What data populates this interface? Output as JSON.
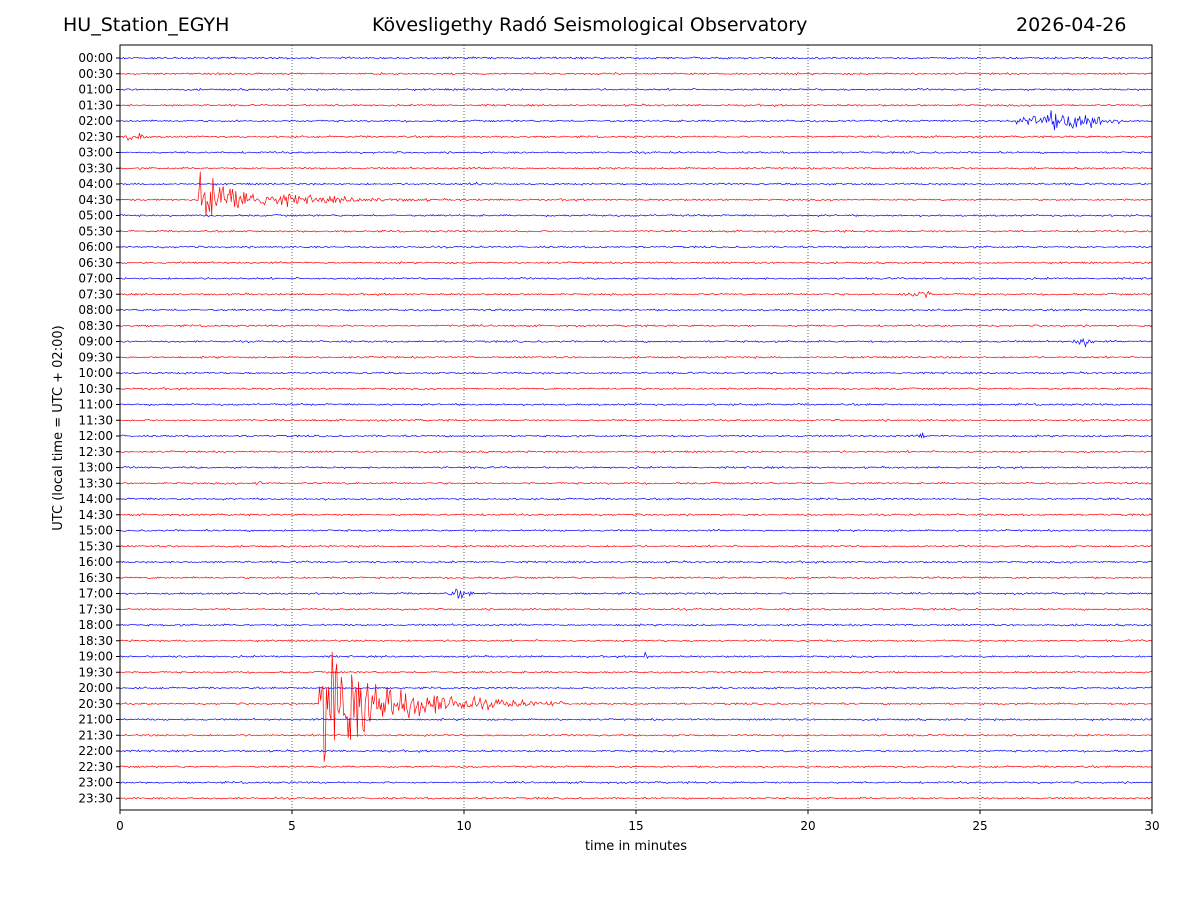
{
  "header": {
    "station": "HU_Station_EGYH",
    "observatory": "Kövesligethy Radó Seismological Observatory",
    "date": "2026-04-26"
  },
  "chart_data": {
    "type": "line",
    "title": "Kövesligethy Radó Seismological Observatory",
    "xlabel": "time in minutes",
    "ylabel": "UTC (local time = UTC + 02:00)",
    "xlim": [
      0,
      30
    ],
    "xticks": [
      0,
      5,
      10,
      15,
      20,
      25,
      30
    ],
    "grid": "vertical dotted lines at x ticks",
    "colors": {
      "even": "#0000ff",
      "odd": "#ff0000",
      "grid": "#000000"
    },
    "rows": [
      "00:00",
      "00:30",
      "01:00",
      "01:30",
      "02:00",
      "02:30",
      "03:00",
      "03:30",
      "04:00",
      "04:30",
      "05:00",
      "05:30",
      "06:00",
      "06:30",
      "07:00",
      "07:30",
      "08:00",
      "08:30",
      "09:00",
      "09:30",
      "10:00",
      "10:30",
      "11:00",
      "11:30",
      "12:00",
      "12:30",
      "13:00",
      "13:30",
      "14:00",
      "14:30",
      "15:00",
      "15:30",
      "16:00",
      "16:30",
      "17:00",
      "17:30",
      "18:00",
      "18:30",
      "19:00",
      "19:30",
      "20:00",
      "20:30",
      "21:00",
      "21:30",
      "22:00",
      "22:30",
      "23:00",
      "23:30"
    ],
    "events": [
      {
        "row": "02:00",
        "start": 25.5,
        "end": 29.5,
        "peak": 27.3,
        "amplitude": 0.7,
        "type": "emergent"
      },
      {
        "row": "04:30",
        "start": 2.3,
        "end": 9.0,
        "peak": 2.3,
        "amplitude": 1.8,
        "type": "impulsive"
      },
      {
        "row": "20:30",
        "start": 5.8,
        "end": 13.0,
        "peak": 5.8,
        "amplitude": 5.0,
        "type": "impulsive"
      },
      {
        "row": "12:00",
        "start": 23.2,
        "end": 23.4,
        "peak": 23.3,
        "amplitude": 0.5,
        "type": "spike"
      },
      {
        "row": "19:00",
        "start": 15.2,
        "end": 15.35,
        "peak": 15.25,
        "amplitude": 0.4,
        "type": "spike"
      },
      {
        "row": "17:00",
        "start": 9.5,
        "end": 10.3,
        "peak": 9.6,
        "amplitude": 0.35,
        "type": "spike"
      },
      {
        "row": "04:00",
        "start": 10.3,
        "end": 10.6,
        "peak": 10.45,
        "amplitude": 0.3,
        "type": "spike"
      },
      {
        "row": "02:30",
        "start": 0.0,
        "end": 0.9,
        "peak": 0.4,
        "amplitude": 0.3,
        "type": "emergent"
      },
      {
        "row": "13:30",
        "start": 3.9,
        "end": 4.2,
        "peak": 4.0,
        "amplitude": 0.35,
        "type": "spike"
      },
      {
        "row": "09:00",
        "start": 27.6,
        "end": 28.4,
        "peak": 28.0,
        "amplitude": 0.3,
        "type": "emergent"
      },
      {
        "row": "07:30",
        "start": 22.6,
        "end": 23.8,
        "peak": 23.2,
        "amplitude": 0.3,
        "type": "emergent"
      }
    ]
  }
}
